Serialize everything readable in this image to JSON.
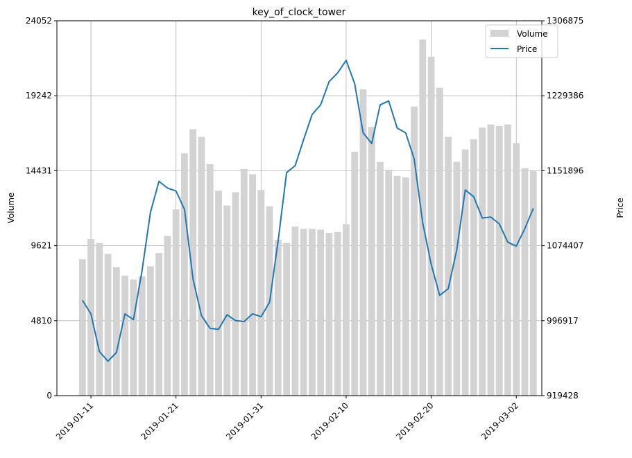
{
  "chart_data": {
    "type": "bar+line",
    "title": "key_of_clock_tower",
    "xlabel": "",
    "ylabel_left": "Volume",
    "ylabel_right": "Price",
    "grid": true,
    "legend": {
      "position": "top-right",
      "entries": [
        "Volume",
        "Price"
      ]
    },
    "colors": {
      "volume_bar": "#d3d3d3",
      "price_line": "#1f77b4",
      "grid": "#b0b0b0"
    },
    "x_range": [
      "2019-01-07",
      "2019-03-05"
    ],
    "x_ticks": [
      "2019-01-11",
      "2019-01-21",
      "2019-01-31",
      "2019-02-10",
      "2019-02-20",
      "2019-03-02"
    ],
    "y_left_range": [
      0,
      24052
    ],
    "y_left_ticks": [
      "0",
      "4810",
      "9621",
      "14431",
      "19242",
      "24052"
    ],
    "y_right_range": [
      919428,
      1306875
    ],
    "y_right_ticks": [
      "919428",
      "996917",
      "1074407",
      "1151896",
      "1229386",
      "1306875"
    ],
    "dates": [
      "2019-01-10",
      "2019-01-11",
      "2019-01-12",
      "2019-01-13",
      "2019-01-14",
      "2019-01-15",
      "2019-01-16",
      "2019-01-17",
      "2019-01-18",
      "2019-01-19",
      "2019-01-20",
      "2019-01-21",
      "2019-01-22",
      "2019-01-23",
      "2019-01-24",
      "2019-01-25",
      "2019-01-26",
      "2019-01-27",
      "2019-01-28",
      "2019-01-29",
      "2019-01-30",
      "2019-01-31",
      "2019-02-01",
      "2019-02-02",
      "2019-02-03",
      "2019-02-04",
      "2019-02-05",
      "2019-02-06",
      "2019-02-07",
      "2019-02-08",
      "2019-02-09",
      "2019-02-10",
      "2019-02-11",
      "2019-02-12",
      "2019-02-13",
      "2019-02-14",
      "2019-02-15",
      "2019-02-16",
      "2019-02-17",
      "2019-02-18",
      "2019-02-19",
      "2019-02-20",
      "2019-02-21",
      "2019-02-22",
      "2019-02-23",
      "2019-02-24",
      "2019-02-25",
      "2019-02-26",
      "2019-02-27",
      "2019-02-28",
      "2019-03-01",
      "2019-03-02",
      "2019-03-03",
      "2019-03-04"
    ],
    "series": [
      {
        "name": "Volume",
        "axis": "left",
        "type": "bar",
        "values": [
          8750,
          10050,
          9800,
          9100,
          8250,
          7700,
          7450,
          7650,
          8300,
          9150,
          10250,
          11950,
          15550,
          17100,
          16600,
          14850,
          13150,
          12200,
          13050,
          14550,
          14200,
          13200,
          12150,
          10000,
          9800,
          10850,
          10700,
          10700,
          10650,
          10450,
          10500,
          11000,
          15650,
          19650,
          17250,
          15000,
          14500,
          14100,
          14000,
          18550,
          22850,
          21750,
          19750,
          16600,
          15000,
          15800,
          16450,
          17200,
          17400,
          17300,
          17400,
          16200,
          14600,
          14400
        ]
      },
      {
        "name": "Price",
        "axis": "right",
        "type": "line",
        "values": [
          1018000,
          1004000,
          965000,
          955000,
          964000,
          1004000,
          998000,
          1048000,
          1109000,
          1141000,
          1134000,
          1131000,
          1112000,
          1040000,
          1002000,
          989000,
          988000,
          1003000,
          997000,
          996000,
          1004000,
          1001000,
          1016000,
          1079000,
          1150000,
          1157000,
          1184000,
          1210000,
          1220000,
          1244000,
          1253000,
          1266000,
          1242000,
          1191000,
          1180000,
          1220000,
          1224000,
          1196000,
          1191000,
          1164000,
          1098000,
          1055000,
          1023000,
          1030000,
          1070000,
          1132000,
          1125000,
          1103000,
          1104000,
          1097000,
          1078000,
          1074000,
          1092000,
          1113000
        ]
      }
    ]
  }
}
